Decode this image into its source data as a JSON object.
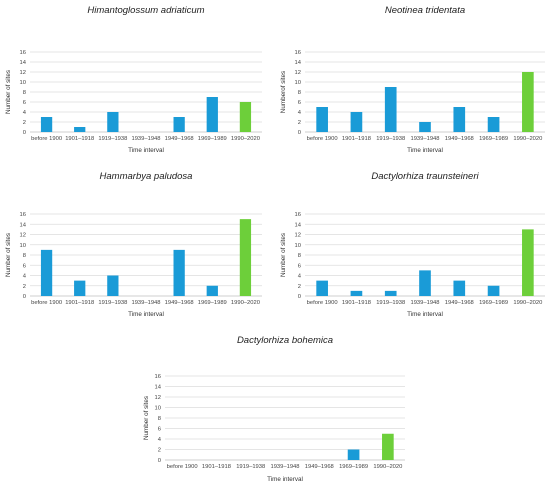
{
  "chart_data": [
    {
      "type": "bar",
      "title": "Himantoglossum adriaticum",
      "xlabel": "Time interval",
      "ylabel": "Number of sites",
      "ylim": [
        0,
        16
      ],
      "yticks": [
        0,
        2,
        4,
        6,
        8,
        10,
        12,
        14,
        16
      ],
      "grid": true,
      "categories": [
        "before 1900",
        "1901–1918",
        "1919–1938",
        "1939–1948",
        "1949–1968",
        "1969–1989",
        "1990–2020"
      ],
      "values": [
        3,
        1,
        4,
        0,
        3,
        7,
        6
      ],
      "colors": [
        "#1a9bd7",
        "#1a9bd7",
        "#1a9bd7",
        "#1a9bd7",
        "#1a9bd7",
        "#1a9bd7",
        "#6dcf3a"
      ]
    },
    {
      "type": "bar",
      "title": "Neotinea tridentata",
      "xlabel": "Time interval",
      "ylabel": "Numberof sites",
      "ylim": [
        0,
        16
      ],
      "yticks": [
        0,
        2,
        4,
        6,
        8,
        10,
        12,
        14,
        16
      ],
      "grid": true,
      "categories": [
        "before 1900",
        "1901–1918",
        "1919–1938",
        "1939–1948",
        "1949–1968",
        "1969–1989",
        "1990–2020"
      ],
      "values": [
        5,
        4,
        9,
        2,
        5,
        3,
        12
      ],
      "colors": [
        "#1a9bd7",
        "#1a9bd7",
        "#1a9bd7",
        "#1a9bd7",
        "#1a9bd7",
        "#1a9bd7",
        "#6dcf3a"
      ]
    },
    {
      "type": "bar",
      "title": "Hammarbya paludosa",
      "xlabel": "Time interval",
      "ylabel": "Number of sites",
      "ylim": [
        0,
        16
      ],
      "yticks": [
        0,
        2,
        4,
        6,
        8,
        10,
        12,
        14,
        16
      ],
      "grid": true,
      "categories": [
        "before 1900",
        "1901–1918",
        "1919–1938",
        "1939–1948",
        "1949–1968",
        "1969–1989",
        "1990–2020"
      ],
      "values": [
        9,
        3,
        4,
        0,
        9,
        2,
        15
      ],
      "colors": [
        "#1a9bd7",
        "#1a9bd7",
        "#1a9bd7",
        "#1a9bd7",
        "#1a9bd7",
        "#1a9bd7",
        "#6dcf3a"
      ]
    },
    {
      "type": "bar",
      "title": "Dactylorhiza traunsteineri",
      "xlabel": "Time interval",
      "ylabel": "Number of sites",
      "ylim": [
        0,
        16
      ],
      "yticks": [
        0,
        2,
        4,
        6,
        8,
        10,
        12,
        14,
        16
      ],
      "grid": true,
      "categories": [
        "before 1900",
        "1901–1918",
        "1919–1938",
        "1939–1948",
        "1949–1968",
        "1969–1989",
        "1990–2020"
      ],
      "values": [
        3,
        1,
        1,
        5,
        3,
        2,
        13
      ],
      "colors": [
        "#1a9bd7",
        "#1a9bd7",
        "#1a9bd7",
        "#1a9bd7",
        "#1a9bd7",
        "#1a9bd7",
        "#6dcf3a"
      ]
    },
    {
      "type": "bar",
      "title": "Dactylorhiza bohemica",
      "xlabel": "Time interval",
      "ylabel": "Number of sites",
      "ylim": [
        0,
        16
      ],
      "yticks": [
        0,
        2,
        4,
        6,
        8,
        10,
        12,
        14,
        16
      ],
      "grid": true,
      "categories": [
        "before 1900",
        "1901–1918",
        "1919–1938",
        "1939–1948",
        "1949–1968",
        "1969–1989",
        "1990–2020"
      ],
      "values": [
        0,
        0,
        0,
        0,
        0,
        2,
        5
      ],
      "colors": [
        "#1a9bd7",
        "#1a9bd7",
        "#1a9bd7",
        "#1a9bd7",
        "#1a9bd7",
        "#1a9bd7",
        "#6dcf3a"
      ]
    }
  ]
}
